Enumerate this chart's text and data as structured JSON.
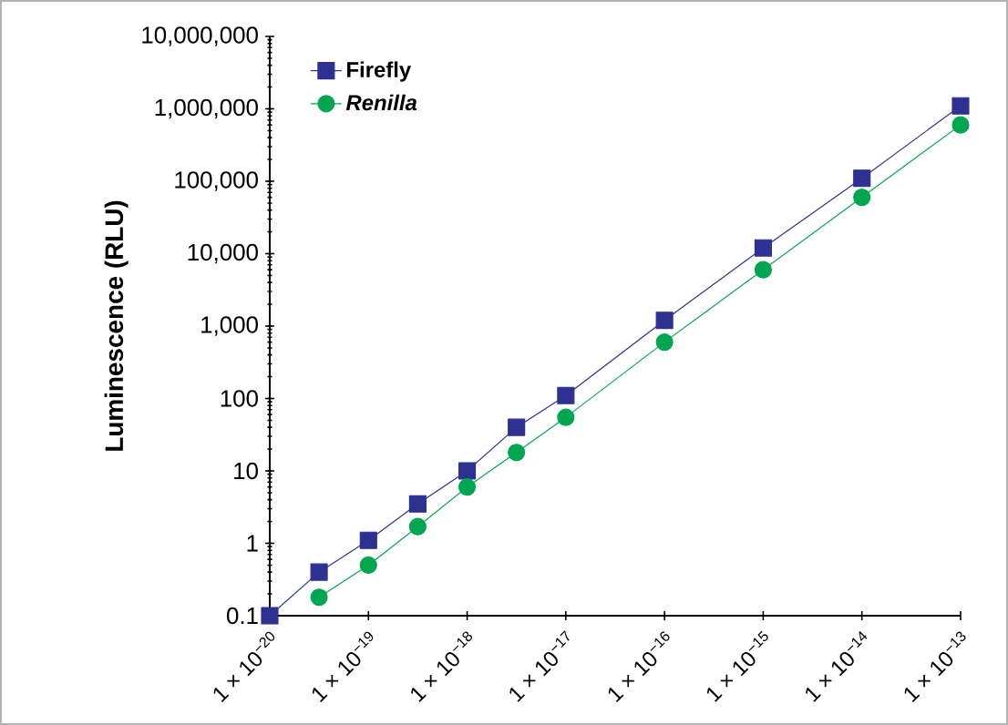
{
  "chart_data": {
    "type": "line",
    "ylabel": "Luminescence (RLU)",
    "log": "xy",
    "legend": "top left",
    "grid": false,
    "xlim": [
      1e-20,
      1e-13
    ],
    "xticks": [
      {
        "value": 1e-20,
        "label": "1 × 10$^{−20}$"
      },
      {
        "value": 1e-19,
        "label": "1 × 10$^{−19}$"
      },
      {
        "value": 1e-18,
        "label": "1 × 10$^{−18}$"
      },
      {
        "value": 1e-17,
        "label": "1 × 10$^{−17}$"
      },
      {
        "value": 1e-16,
        "label": "1 × 10$^{−16}$"
      },
      {
        "value": 1e-15,
        "label": "1 × 10$^{−15}$"
      },
      {
        "value": 1e-14,
        "label": "1 × 10$^{−14}$"
      },
      {
        "value": 1e-13,
        "label": "1 × 10$^{−13}$"
      }
    ],
    "ylim": [
      0.1,
      10000000
    ],
    "yticks": [
      0.1,
      1,
      10,
      100,
      {
        "value": 1000,
        "label": "1,000"
      },
      {
        "value": 10000,
        "label": "10,000"
      },
      {
        "value": 100000,
        "label": "100,000"
      },
      {
        "value": 1000000,
        "label": "1,000,000"
      },
      {
        "value": 10000000,
        "label": "10,000,000"
      }
    ],
    "series": [
      {
        "name": "Firefly",
        "color": "#2e3192",
        "marker": "square",
        "x": [
          1e-20,
          3.16e-20,
          1e-19,
          3.16e-19,
          1e-18,
          3.16e-18,
          1e-17,
          1e-16,
          1e-15,
          1e-14,
          1e-13
        ],
        "values": [
          0.1,
          0.4,
          1.1,
          3.5,
          10,
          40,
          110,
          1200,
          12000,
          110000,
          1100000
        ]
      },
      {
        "name": "*Renilla*",
        "color": "#00a651",
        "marker": "circle",
        "x": [
          3.16e-20,
          1e-19,
          3.16e-19,
          1e-18,
          3.16e-18,
          1e-17,
          1e-16,
          1e-15,
          1e-14,
          1e-13
        ],
        "values": [
          0.18,
          0.5,
          1.7,
          6,
          18,
          55,
          600,
          6000,
          60000,
          600000
        ]
      }
    ]
  }
}
